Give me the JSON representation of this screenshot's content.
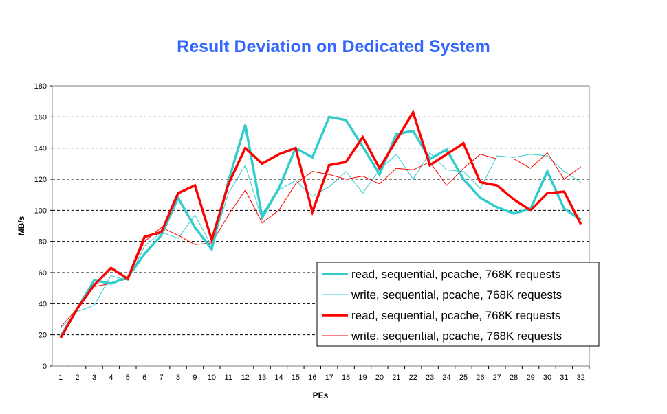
{
  "chart_data": {
    "type": "line",
    "title": "Result Deviation on Dedicated System",
    "xlabel": "PEs",
    "ylabel": "MB/s",
    "ylim": [
      0,
      180
    ],
    "yticks": [
      0,
      20,
      40,
      60,
      80,
      100,
      120,
      140,
      160,
      180
    ],
    "x": [
      1,
      2,
      3,
      4,
      5,
      6,
      7,
      8,
      9,
      10,
      11,
      12,
      13,
      14,
      15,
      16,
      17,
      18,
      19,
      20,
      21,
      22,
      23,
      24,
      25,
      26,
      27,
      28,
      29,
      30,
      31,
      32
    ],
    "grid": "horizontal dashed",
    "legend_position": "bottom-right",
    "series": [
      {
        "name": "read, sequential, pcache, 768K requests",
        "color": "#33cccc",
        "width": "thick",
        "values": [
          19,
          37,
          55,
          53,
          57,
          72,
          84,
          108,
          89,
          75,
          119,
          155,
          96,
          114,
          140,
          134,
          160,
          158,
          141,
          123,
          149,
          151,
          133,
          139,
          120,
          108,
          102,
          98,
          101,
          125,
          101,
          94
        ]
      },
      {
        "name": "write, sequential, pcache, 768K requests",
        "color": "#33cccc",
        "width": "thin",
        "values": [
          24,
          35,
          39,
          58,
          55,
          77,
          86,
          82,
          97,
          77,
          111,
          129,
          94,
          113,
          119,
          109,
          115,
          125,
          111,
          126,
          136,
          120,
          137,
          126,
          125,
          114,
          135,
          134,
          136,
          135,
          125,
          118
        ]
      },
      {
        "name": "read, sequential, pcache, 768K requests",
        "color": "#ff0000",
        "width": "thick",
        "values": [
          18,
          37,
          52,
          63,
          56,
          83,
          86,
          111,
          116,
          81,
          117,
          140,
          130,
          136,
          140,
          99,
          129,
          131,
          147,
          127,
          145,
          163,
          129,
          136,
          143,
          118,
          116,
          107,
          100,
          111,
          112,
          91
        ]
      },
      {
        "name": "write, sequential, pcache, 768K requests",
        "color": "#ff0000",
        "width": "thin",
        "values": [
          25,
          37,
          51,
          53,
          56,
          80,
          89,
          84,
          78,
          79,
          97,
          113,
          92,
          100,
          117,
          125,
          123,
          120,
          122,
          117,
          127,
          126,
          131,
          116,
          127,
          136,
          133,
          133,
          127,
          137,
          120,
          128
        ]
      }
    ]
  }
}
